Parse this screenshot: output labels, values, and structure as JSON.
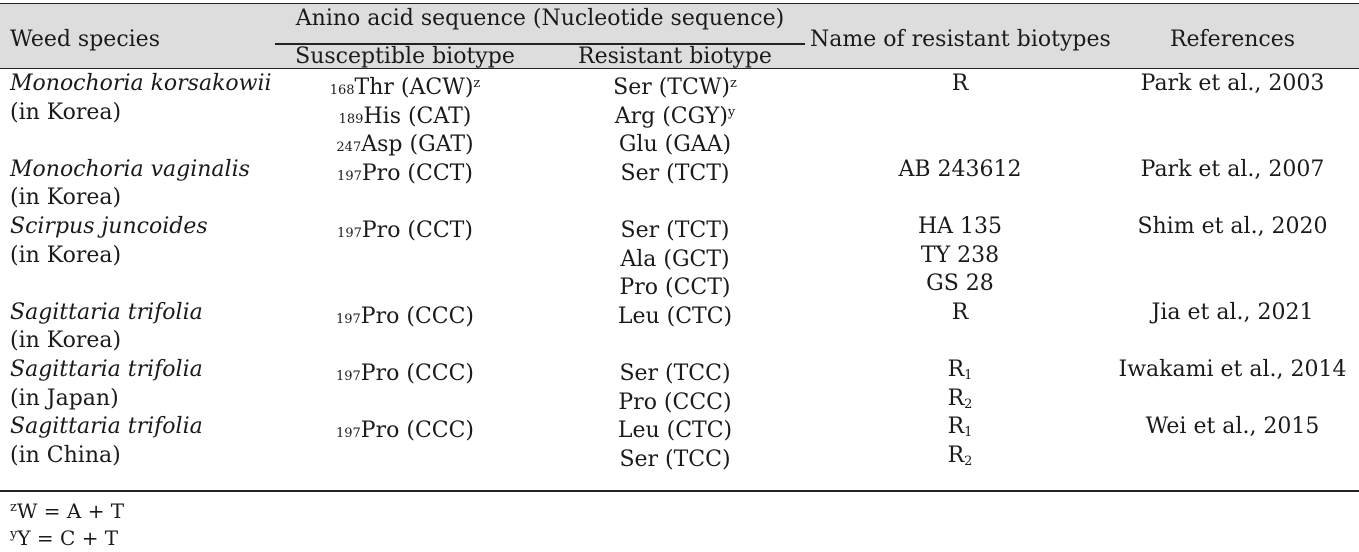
{
  "header": {
    "weed_species": "Weed species",
    "amino_group": "Anino acid sequence (Nucleotide sequence)",
    "susceptible": "Susceptible biotype",
    "resistant": "Resistant biotype",
    "names": "Name of resistant biotypes",
    "references": "References"
  },
  "rows": [
    {
      "weed": "Monochoria korsakowii",
      "weed_italic": true,
      "sus_pos": "168",
      "sus": "Thr (ACW)",
      "sus_sup": "z",
      "res": "Ser (TCW)",
      "res_sup": "z",
      "name": "R",
      "name_sub": "",
      "ref": "Park et al., 2003"
    },
    {
      "weed": "(in Korea)",
      "weed_italic": false,
      "sus_pos": "189",
      "sus": "His (CAT)",
      "sus_sup": "",
      "res": "Arg (CGY)",
      "res_sup": "y",
      "name": "",
      "name_sub": "",
      "ref": ""
    },
    {
      "weed": "",
      "weed_italic": false,
      "sus_pos": "247",
      "sus": "Asp (GAT)",
      "sus_sup": "",
      "res": "Glu (GAA)",
      "res_sup": "",
      "name": "",
      "name_sub": "",
      "ref": ""
    },
    {
      "weed": "Monochoria vaginalis",
      "weed_italic": true,
      "sus_pos": "197",
      "sus": "Pro (CCT)",
      "sus_sup": "",
      "res": "Ser (TCT)",
      "res_sup": "",
      "name": "AB 243612",
      "name_sub": "",
      "ref": "Park et al., 2007"
    },
    {
      "weed": "(in Korea)",
      "weed_italic": false,
      "sus_pos": "",
      "sus": "",
      "sus_sup": "",
      "res": "",
      "res_sup": "",
      "name": "",
      "name_sub": "",
      "ref": ""
    },
    {
      "weed": "Scirpus juncoides",
      "weed_italic": true,
      "sus_pos": "197",
      "sus": "Pro (CCT)",
      "sus_sup": "",
      "res": "Ser (TCT)",
      "res_sup": "",
      "name": "HA 135",
      "name_sub": "",
      "ref": "Shim et al., 2020"
    },
    {
      "weed": "(in Korea)",
      "weed_italic": false,
      "sus_pos": "",
      "sus": "",
      "sus_sup": "",
      "res": "Ala (GCT)",
      "res_sup": "",
      "name": "TY 238",
      "name_sub": "",
      "ref": ""
    },
    {
      "weed": "",
      "weed_italic": false,
      "sus_pos": "",
      "sus": "",
      "sus_sup": "",
      "res": "Pro (CCT)",
      "res_sup": "",
      "name": "GS 28",
      "name_sub": "",
      "ref": ""
    },
    {
      "weed": "Sagittaria trifolia",
      "weed_italic": true,
      "sus_pos": "197",
      "sus": "Pro (CCC)",
      "sus_sup": "",
      "res": "Leu (CTC)",
      "res_sup": "",
      "name": "R",
      "name_sub": "",
      "ref": "Jia et al., 2021"
    },
    {
      "weed": "(in Korea)",
      "weed_italic": false,
      "sus_pos": "",
      "sus": "",
      "sus_sup": "",
      "res": "",
      "res_sup": "",
      "name": "",
      "name_sub": "",
      "ref": ""
    },
    {
      "weed": "Sagittaria trifolia",
      "weed_italic": true,
      "sus_pos": "197",
      "sus": "Pro (CCC)",
      "sus_sup": "",
      "res": "Ser (TCC)",
      "res_sup": "",
      "name": "R",
      "name_sub": "1",
      "ref": "Iwakami et al., 2014"
    },
    {
      "weed": "(in Japan)",
      "weed_italic": false,
      "sus_pos": "",
      "sus": "",
      "sus_sup": "",
      "res": "Pro (CCC)",
      "res_sup": "",
      "name": "R",
      "name_sub": "2",
      "ref": ""
    },
    {
      "weed": "Sagittaria trifolia",
      "weed_italic": true,
      "sus_pos": "197",
      "sus": "Pro (CCC)",
      "sus_sup": "",
      "res": "Leu (CTC)",
      "res_sup": "",
      "name": "R",
      "name_sub": "1",
      "ref": "Wei et al., 2015"
    },
    {
      "weed": "(in China)",
      "weed_italic": false,
      "sus_pos": "",
      "sus": "",
      "sus_sup": "",
      "res": "Ser (TCC)",
      "res_sup": "",
      "name": "R",
      "name_sub": "2",
      "ref": ""
    }
  ],
  "footnotes": [
    {
      "mark": "z",
      "text": "W = A + T"
    },
    {
      "mark": "y",
      "text": "Y = C + T"
    }
  ]
}
